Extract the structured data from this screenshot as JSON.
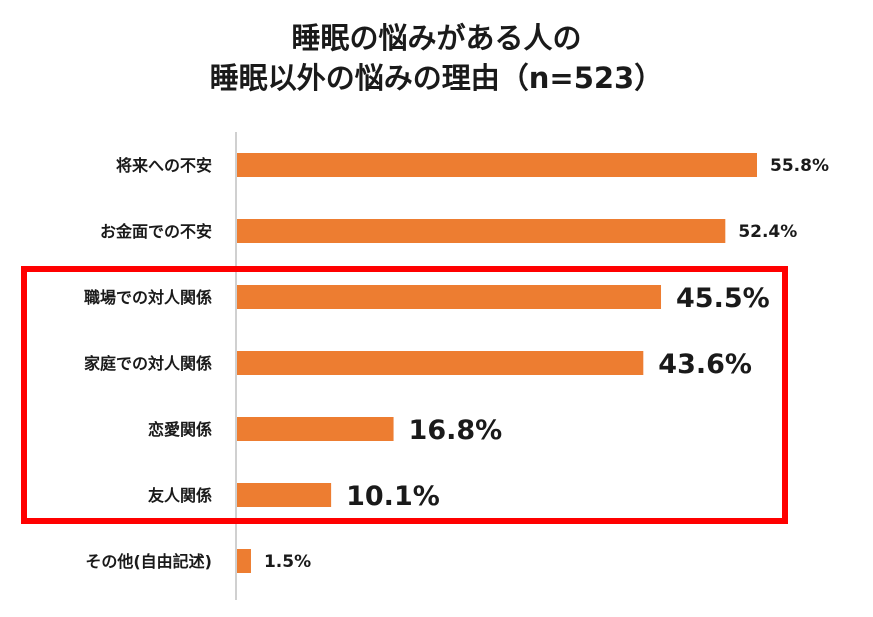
{
  "chart_data": {
    "type": "bar",
    "orientation": "horizontal",
    "title_line1": "睡眠の悩みがある人の",
    "title_line2": "睡眠以外の悩みの理由（n=523）",
    "categories": [
      "将来への不安",
      "お金面での不安",
      "職場での対人関係",
      "家庭での対人関係",
      "恋愛関係",
      "友人関係",
      "その他(自由記述)"
    ],
    "values": [
      55.8,
      52.4,
      45.5,
      43.6,
      16.8,
      10.1,
      1.5
    ],
    "value_labels": [
      "55.8%",
      "52.4%",
      "45.5%",
      "43.6%",
      "16.8%",
      "10.1%",
      "1.5%"
    ],
    "emphasized": [
      false,
      false,
      true,
      true,
      true,
      true,
      false
    ],
    "xlim": [
      0,
      60
    ],
    "bar_color": "#ED7D31",
    "highlight_box_color": "#FF0000",
    "highlight_categories": [
      "職場での対人関係",
      "家庭での対人関係",
      "恋愛関係",
      "友人関係"
    ]
  }
}
